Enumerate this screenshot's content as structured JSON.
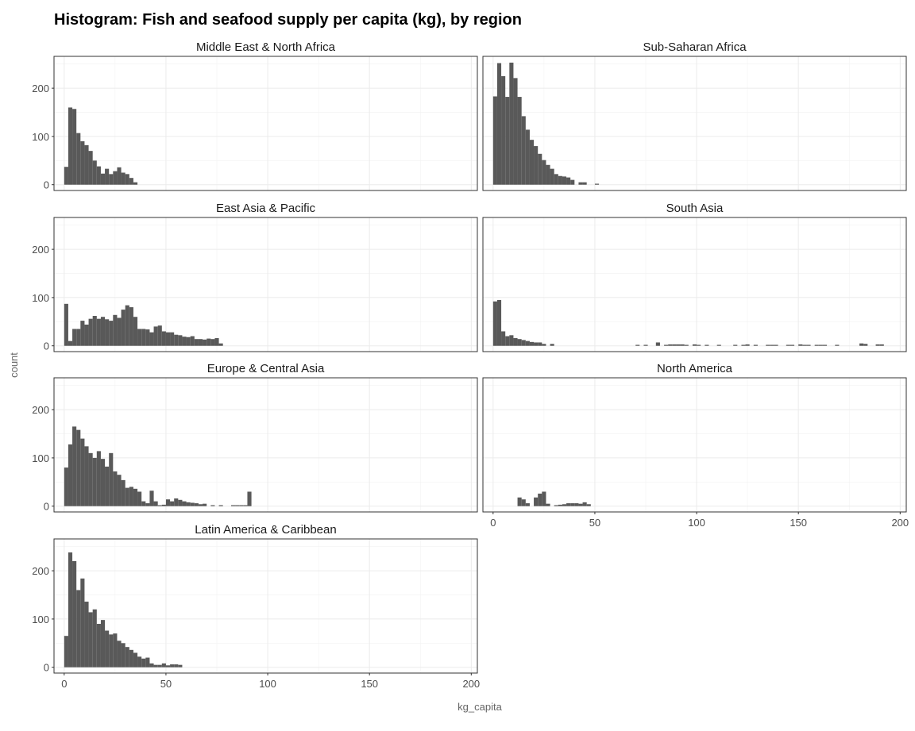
{
  "chart_data": {
    "type": "bar",
    "title": "Histogram: Fish and seafood supply per capita (kg), by region",
    "xlabel": "kg_capita",
    "ylabel": "count",
    "xlim": [
      -5,
      203
    ],
    "ylim": [
      -12,
      266
    ],
    "xticks": [
      0,
      50,
      100,
      150,
      200
    ],
    "yticks": [
      0,
      100,
      200
    ],
    "bin_width": 2,
    "grid": true,
    "bar_color": "#595959",
    "panels": [
      {
        "name": "Middle East & North Africa",
        "bins": [
          [
            0,
            37
          ],
          [
            2,
            160
          ],
          [
            4,
            157
          ],
          [
            6,
            107
          ],
          [
            8,
            90
          ],
          [
            10,
            82
          ],
          [
            12,
            70
          ],
          [
            14,
            50
          ],
          [
            16,
            38
          ],
          [
            18,
            23
          ],
          [
            20,
            33
          ],
          [
            22,
            22
          ],
          [
            24,
            28
          ],
          [
            26,
            36
          ],
          [
            28,
            25
          ],
          [
            30,
            22
          ],
          [
            32,
            14
          ],
          [
            34,
            5
          ]
        ]
      },
      {
        "name": "Sub-Saharan Africa",
        "bins": [
          [
            0,
            183
          ],
          [
            2,
            252
          ],
          [
            4,
            225
          ],
          [
            6,
            182
          ],
          [
            8,
            253
          ],
          [
            10,
            221
          ],
          [
            12,
            182
          ],
          [
            14,
            142
          ],
          [
            16,
            114
          ],
          [
            18,
            93
          ],
          [
            20,
            80
          ],
          [
            22,
            64
          ],
          [
            24,
            51
          ],
          [
            26,
            41
          ],
          [
            28,
            33
          ],
          [
            30,
            22
          ],
          [
            32,
            18
          ],
          [
            34,
            17
          ],
          [
            36,
            15
          ],
          [
            38,
            10
          ],
          [
            42,
            5
          ],
          [
            44,
            5
          ],
          [
            50,
            2
          ]
        ]
      },
      {
        "name": "East Asia & Pacific",
        "bins": [
          [
            0,
            87
          ],
          [
            2,
            10
          ],
          [
            4,
            35
          ],
          [
            6,
            35
          ],
          [
            8,
            52
          ],
          [
            10,
            44
          ],
          [
            12,
            56
          ],
          [
            14,
            62
          ],
          [
            16,
            56
          ],
          [
            18,
            60
          ],
          [
            20,
            55
          ],
          [
            22,
            52
          ],
          [
            24,
            64
          ],
          [
            26,
            58
          ],
          [
            28,
            75
          ],
          [
            30,
            84
          ],
          [
            32,
            80
          ],
          [
            34,
            60
          ],
          [
            36,
            35
          ],
          [
            38,
            35
          ],
          [
            40,
            34
          ],
          [
            42,
            28
          ],
          [
            44,
            40
          ],
          [
            46,
            42
          ],
          [
            48,
            30
          ],
          [
            50,
            28
          ],
          [
            52,
            28
          ],
          [
            54,
            23
          ],
          [
            56,
            22
          ],
          [
            58,
            19
          ],
          [
            60,
            18
          ],
          [
            62,
            20
          ],
          [
            64,
            14
          ],
          [
            66,
            14
          ],
          [
            68,
            13
          ],
          [
            70,
            15
          ],
          [
            72,
            14
          ],
          [
            74,
            16
          ],
          [
            76,
            5
          ]
        ]
      },
      {
        "name": "South Asia",
        "bins": [
          [
            0,
            92
          ],
          [
            2,
            95
          ],
          [
            4,
            30
          ],
          [
            6,
            20
          ],
          [
            8,
            22
          ],
          [
            10,
            16
          ],
          [
            12,
            14
          ],
          [
            14,
            12
          ],
          [
            16,
            10
          ],
          [
            18,
            8
          ],
          [
            20,
            7
          ],
          [
            22,
            7
          ],
          [
            24,
            4
          ],
          [
            28,
            4
          ],
          [
            70,
            2
          ],
          [
            74,
            2
          ],
          [
            80,
            7
          ],
          [
            84,
            2
          ],
          [
            86,
            3
          ],
          [
            88,
            3
          ],
          [
            90,
            3
          ],
          [
            92,
            3
          ],
          [
            94,
            2
          ],
          [
            98,
            3
          ],
          [
            100,
            2
          ],
          [
            104,
            2
          ],
          [
            110,
            2
          ],
          [
            118,
            2
          ],
          [
            122,
            2
          ],
          [
            124,
            3
          ],
          [
            128,
            2
          ],
          [
            134,
            2
          ],
          [
            136,
            2
          ],
          [
            138,
            2
          ],
          [
            144,
            2
          ],
          [
            146,
            2
          ],
          [
            150,
            3
          ],
          [
            152,
            2
          ],
          [
            154,
            2
          ],
          [
            158,
            2
          ],
          [
            160,
            2
          ],
          [
            162,
            2
          ],
          [
            168,
            2
          ],
          [
            180,
            5
          ],
          [
            182,
            4
          ],
          [
            188,
            3
          ],
          [
            190,
            3
          ]
        ]
      },
      {
        "name": "Europe & Central Asia",
        "bins": [
          [
            0,
            80
          ],
          [
            2,
            128
          ],
          [
            4,
            165
          ],
          [
            6,
            158
          ],
          [
            8,
            140
          ],
          [
            10,
            124
          ],
          [
            12,
            110
          ],
          [
            14,
            100
          ],
          [
            16,
            114
          ],
          [
            18,
            98
          ],
          [
            20,
            82
          ],
          [
            22,
            110
          ],
          [
            24,
            72
          ],
          [
            26,
            65
          ],
          [
            28,
            54
          ],
          [
            30,
            38
          ],
          [
            32,
            40
          ],
          [
            34,
            36
          ],
          [
            36,
            30
          ],
          [
            38,
            10
          ],
          [
            40,
            6
          ],
          [
            42,
            32
          ],
          [
            44,
            10
          ],
          [
            46,
            2
          ],
          [
            48,
            3
          ],
          [
            50,
            14
          ],
          [
            52,
            10
          ],
          [
            54,
            16
          ],
          [
            56,
            13
          ],
          [
            58,
            10
          ],
          [
            60,
            8
          ],
          [
            62,
            7
          ],
          [
            64,
            6
          ],
          [
            66,
            4
          ],
          [
            68,
            5
          ],
          [
            72,
            2
          ],
          [
            76,
            2
          ],
          [
            82,
            2
          ],
          [
            84,
            2
          ],
          [
            86,
            2
          ],
          [
            88,
            2
          ],
          [
            90,
            30
          ]
        ]
      },
      {
        "name": "North America",
        "bins": [
          [
            12,
            18
          ],
          [
            14,
            14
          ],
          [
            16,
            6
          ],
          [
            20,
            18
          ],
          [
            22,
            26
          ],
          [
            24,
            30
          ],
          [
            26,
            5
          ],
          [
            30,
            2
          ],
          [
            32,
            3
          ],
          [
            34,
            4
          ],
          [
            36,
            6
          ],
          [
            38,
            6
          ],
          [
            40,
            6
          ],
          [
            42,
            5
          ],
          [
            44,
            8
          ],
          [
            46,
            4
          ]
        ]
      },
      {
        "name": "Latin America & Caribbean",
        "bins": [
          [
            0,
            65
          ],
          [
            2,
            238
          ],
          [
            4,
            220
          ],
          [
            6,
            160
          ],
          [
            8,
            184
          ],
          [
            10,
            136
          ],
          [
            12,
            114
          ],
          [
            14,
            120
          ],
          [
            16,
            90
          ],
          [
            18,
            98
          ],
          [
            20,
            76
          ],
          [
            22,
            68
          ],
          [
            24,
            70
          ],
          [
            26,
            55
          ],
          [
            28,
            50
          ],
          [
            30,
            42
          ],
          [
            32,
            36
          ],
          [
            34,
            30
          ],
          [
            36,
            22
          ],
          [
            38,
            18
          ],
          [
            40,
            20
          ],
          [
            42,
            8
          ],
          [
            44,
            5
          ],
          [
            46,
            5
          ],
          [
            48,
            8
          ],
          [
            50,
            4
          ],
          [
            52,
            6
          ],
          [
            54,
            6
          ],
          [
            56,
            5
          ]
        ]
      }
    ]
  }
}
